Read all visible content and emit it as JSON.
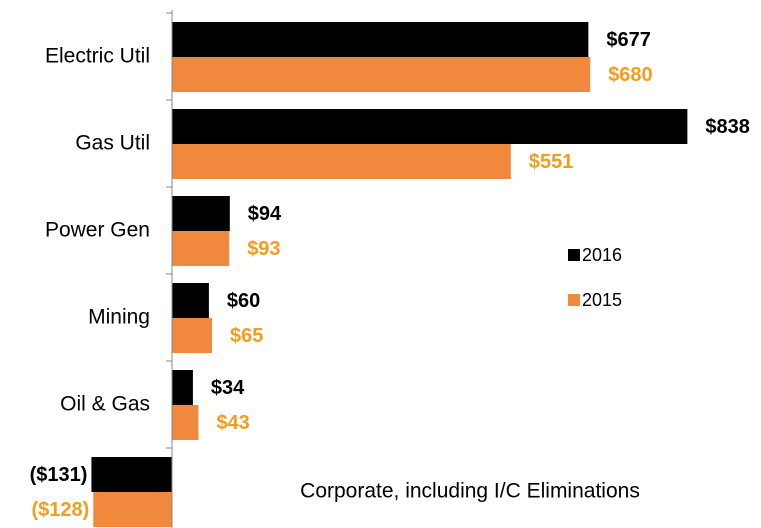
{
  "chart_data": {
    "type": "bar",
    "orientation": "horizontal",
    "categories": [
      "Electric Util",
      "Gas Util",
      "Power Gen",
      "Mining",
      "Oil & Gas",
      "Corporate, including I/C Eliminations"
    ],
    "series": [
      {
        "name": "2016",
        "color": "#000000",
        "label_color": "#000000",
        "values": [
          677,
          838,
          94,
          60,
          34,
          -131
        ],
        "value_labels": [
          "$677",
          "$838",
          "$94",
          "$60",
          "$34",
          "($131)"
        ]
      },
      {
        "name": "2015",
        "color": "#f0883e",
        "label_color": "#f39c1e",
        "values": [
          680,
          551,
          93,
          65,
          43,
          -128
        ],
        "value_labels": [
          "$680",
          "$551",
          "$93",
          "$65",
          "$43",
          "($128)"
        ]
      }
    ],
    "legend": "right"
  }
}
